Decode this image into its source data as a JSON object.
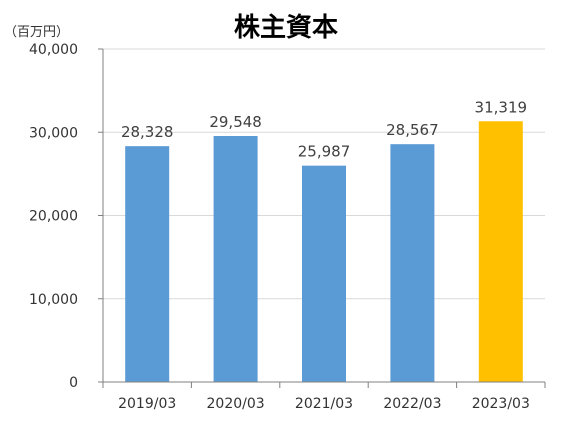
{
  "chart_data": {
    "type": "bar",
    "title": "株主資本",
    "unit_label": "（百万円）",
    "categories": [
      "2019/03",
      "2020/03",
      "2021/03",
      "2022/03",
      "2023/03"
    ],
    "values": [
      28328,
      29548,
      25987,
      28567,
      31319
    ],
    "data_labels": [
      "28,328",
      "29,548",
      "25,987",
      "28,567",
      "31,319"
    ],
    "ylim": [
      0,
      40000
    ],
    "yticks": [
      0,
      10000,
      20000,
      30000,
      40000
    ],
    "ytick_labels": [
      "0",
      "10,000",
      "20,000",
      "30,000",
      "40,000"
    ],
    "grid": true,
    "colors": {
      "bar": "#5b9bd5",
      "highlight_bar": "#ffc000",
      "grid": "#d9d9d9",
      "axis": "#808080"
    },
    "highlight_index": 4
  }
}
